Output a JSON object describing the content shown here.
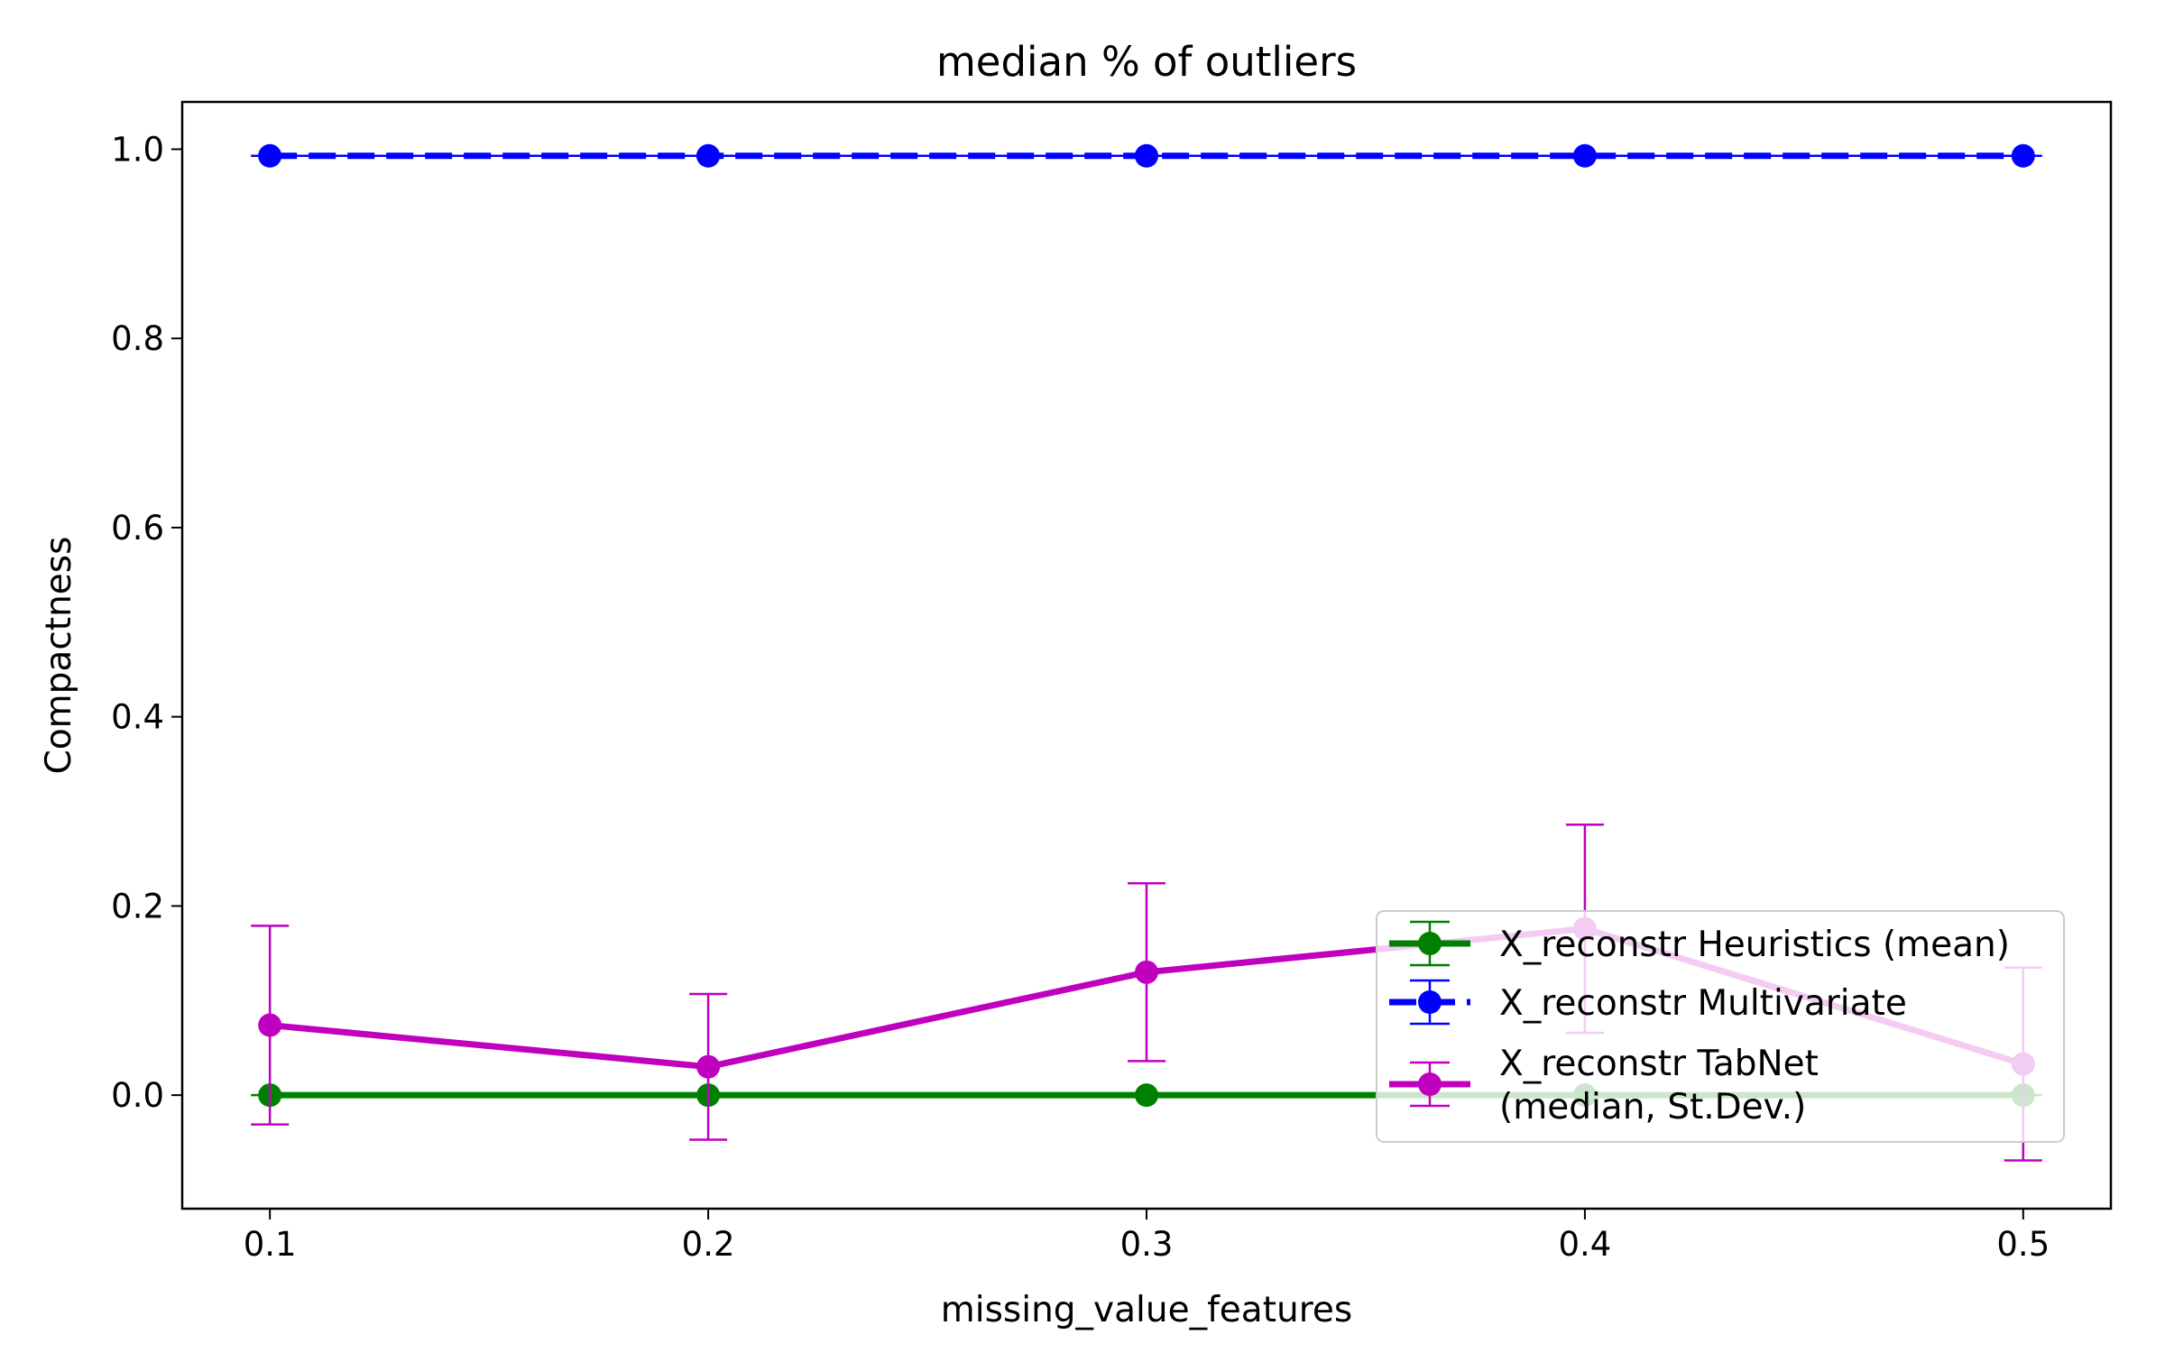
{
  "chart_data": {
    "type": "line",
    "title": "median % of outliers",
    "xlabel": "missing_value_features",
    "ylabel": "Compactness",
    "x": [
      0.1,
      0.2,
      0.3,
      0.4,
      0.5
    ],
    "xticks": [
      0.1,
      0.2,
      0.3,
      0.4,
      0.5
    ],
    "xtick_labels": [
      "0.1",
      "0.2",
      "0.3",
      "0.4",
      "0.5"
    ],
    "yticks": [
      0.0,
      0.2,
      0.4,
      0.6,
      0.8,
      1.0
    ],
    "ytick_labels": [
      "0.0",
      "0.2",
      "0.4",
      "0.6",
      "0.8",
      "1.0"
    ],
    "xlim": [
      0.08,
      0.52
    ],
    "ylim": [
      -0.12,
      1.05
    ],
    "grid": false,
    "legend_position": "lower-right",
    "series": [
      {
        "name": "X_reconstr Heuristics (mean)",
        "color": "#008000",
        "linestyle": "solid",
        "values": [
          0.0,
          0.0,
          0.0,
          0.0,
          0.0
        ],
        "err": [
          0.0,
          0.0,
          0.0,
          0.0,
          0.0
        ]
      },
      {
        "name": "X_reconstr Multivariate",
        "color": "#0000ff",
        "linestyle": "dashed",
        "values": [
          0.993,
          0.993,
          0.993,
          0.993,
          0.993
        ],
        "err": [
          0.0,
          0.0,
          0.0,
          0.0,
          0.0
        ]
      },
      {
        "name": "X_reconstr TabNet\n(median, St.Dev.)",
        "color": "#bf00bf",
        "linestyle": "solid",
        "values": [
          0.074,
          0.03,
          0.13,
          0.176,
          0.033
        ],
        "err": [
          0.105,
          0.077,
          0.094,
          0.11,
          0.102
        ]
      }
    ]
  }
}
